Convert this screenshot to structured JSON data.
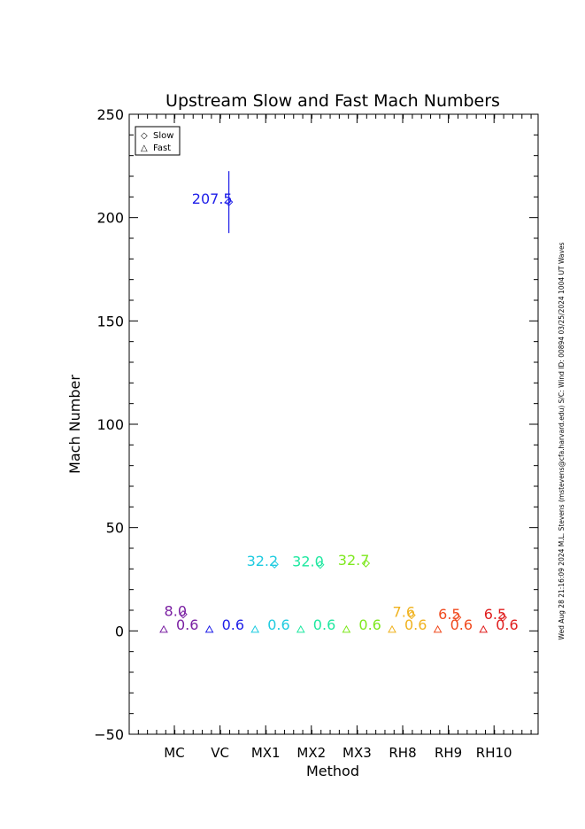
{
  "chart_data": {
    "type": "scatter",
    "title": "Upstream Slow and Fast Mach Numbers",
    "xlabel": "Method",
    "ylabel": "Mach Number",
    "ylim": [
      -50,
      250
    ],
    "yticks": [
      "250",
      "200",
      "150",
      "100",
      "50",
      "0",
      "−50"
    ],
    "ytick_values": [
      250,
      200,
      150,
      100,
      50,
      0,
      -50
    ],
    "categories": [
      "MC",
      "VC",
      "MX1",
      "MX2",
      "MX3",
      "RH8",
      "RH9",
      "RH10"
    ],
    "grid": false,
    "legend_position": "top-left",
    "legend": [
      {
        "symbol": "◇",
        "label": "Slow"
      },
      {
        "symbol": "△",
        "label": "Fast"
      }
    ],
    "series": [
      {
        "symbol": "diamond",
        "label_offset": "left",
        "values": [
          8.0,
          null,
          32.2,
          32.0,
          32.7,
          7.6,
          6.5,
          6.5
        ],
        "labels": [
          "8.0",
          "",
          "32.2",
          "32.0",
          "32.7",
          "7.6",
          "6.5",
          "6.5"
        ],
        "errors": [
          0,
          0,
          0,
          0,
          0,
          0,
          0,
          0
        ]
      },
      {
        "symbol": "diamond",
        "label_offset": "left",
        "values": [
          null,
          207.5,
          null,
          null,
          null,
          null,
          null,
          null
        ],
        "labels": [
          "",
          "207.5",
          "",
          "",
          "",
          "",
          "",
          ""
        ],
        "errors": [
          0,
          15,
          0,
          0,
          0,
          0,
          0,
          0
        ]
      },
      {
        "symbol": "triangle",
        "values": [
          0.6,
          0.6,
          0.6,
          0.6,
          0.6,
          0.6,
          0.6,
          0.6
        ],
        "labels": [
          "0.6",
          "0.6",
          "0.6",
          "0.6",
          "0.6",
          "0.6",
          "0.6",
          "0.6"
        ]
      }
    ],
    "colors": [
      "#7a1fa2",
      "#1e1ee8",
      "#1ecbe0",
      "#1ee8a0",
      "#7ee81e",
      "#f0b21e",
      "#f04a1e",
      "#e01e1e"
    ]
  },
  "side_annotation": "Wed Aug 28 21:16:09 2024   M.L. Stevens (mstevens@cfa.harvard.edu)   S/C: Wind  ID: 00894  03/25/2024   1004  UT Waves"
}
